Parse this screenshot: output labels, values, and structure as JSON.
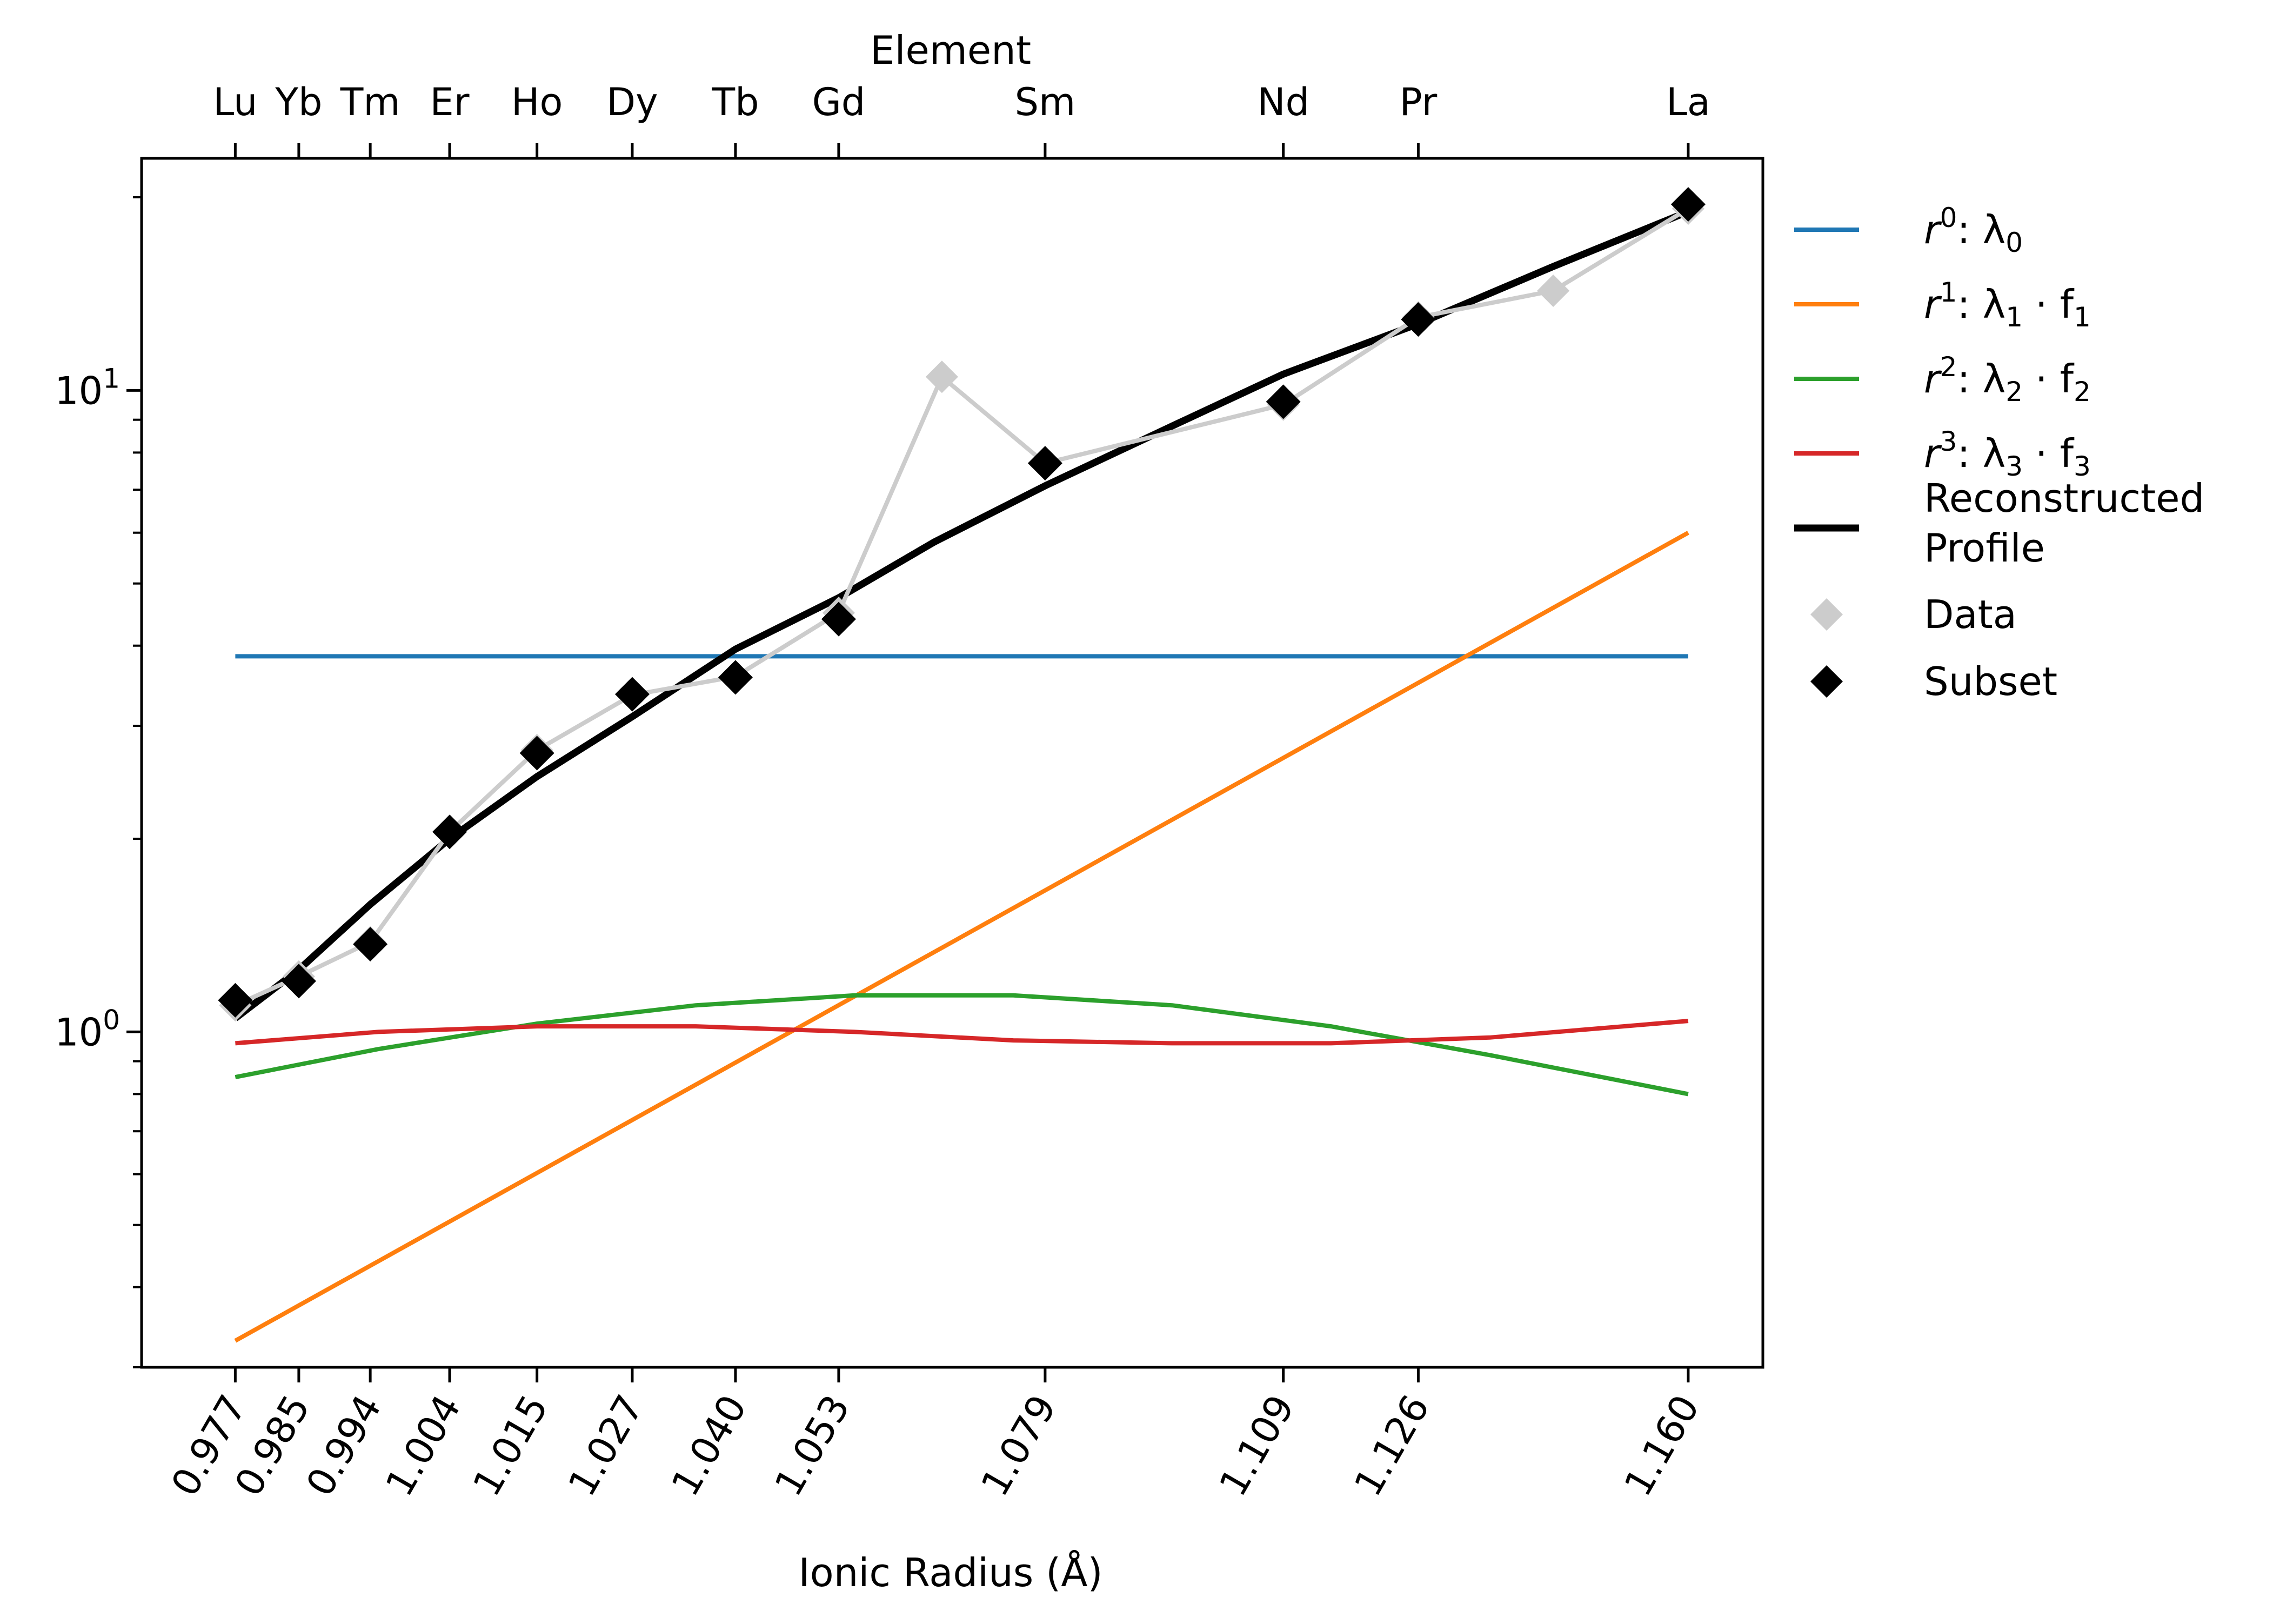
{
  "chart_data": {
    "type": "line",
    "xlabel": "Ionic Radius (Å)",
    "ylabel": "",
    "top_axis_label": "Element",
    "yscale": "log",
    "xlim": [
      0.9652,
      1.1694
    ],
    "ylim": [
      0.3,
      23
    ],
    "grid": false,
    "legend_position": "right, outside plot",
    "x_ticks": [
      0.977,
      0.985,
      0.994,
      1.004,
      1.015,
      1.027,
      1.04,
      1.053,
      1.079,
      1.109,
      1.126,
      1.16
    ],
    "x_tick_labels": [
      "0.977",
      "0.985",
      "0.994",
      "1.004",
      "1.015",
      "1.027",
      "1.040",
      "1.053",
      "1.079",
      "1.109",
      "1.126",
      "1.160"
    ],
    "top_ticks": [
      0.977,
      0.985,
      0.994,
      1.004,
      1.015,
      1.027,
      1.04,
      1.053,
      1.079,
      1.109,
      1.126,
      1.16
    ],
    "top_tick_labels": [
      "Lu",
      "Yb",
      "Tm",
      "Er",
      "Ho",
      "Dy",
      "Tb",
      "Gd",
      "Sm",
      "Nd",
      "Pr",
      "La"
    ],
    "y_tick_labels": [
      {
        "value": 1,
        "base": "10",
        "exp": "0"
      },
      {
        "value": 10,
        "base": "10",
        "exp": "1"
      }
    ],
    "series": [
      {
        "name_base": "r",
        "name_sup": "0",
        "name_rest": ": λ",
        "name_sub": "0",
        "kind": "line",
        "color": "#1f77b4",
        "x": [
          0.977,
          1.16
        ],
        "values": [
          3.85,
          3.85
        ]
      },
      {
        "name_base": "r",
        "name_sup": "1",
        "name_rest": ": λ",
        "name_sub": "1",
        "name_tail": " · f",
        "name_tail_sub": "1",
        "kind": "line",
        "color": "#ff7f0e",
        "x": [
          0.977,
          1.16
        ],
        "values": [
          0.33,
          6.0
        ]
      },
      {
        "name_base": "r",
        "name_sup": "2",
        "name_rest": ": λ",
        "name_sub": "2",
        "name_tail": " · f",
        "name_tail_sub": "2",
        "kind": "line",
        "color": "#2ca02c",
        "x": [
          0.977,
          0.995,
          1.015,
          1.035,
          1.055,
          1.075,
          1.095,
          1.115,
          1.135,
          1.16
        ],
        "values": [
          0.85,
          0.94,
          1.03,
          1.1,
          1.14,
          1.14,
          1.1,
          1.02,
          0.92,
          0.8
        ]
      },
      {
        "name_base": "r",
        "name_sup": "3",
        "name_rest": ": λ",
        "name_sub": "3",
        "name_tail": " · f",
        "name_tail_sub": "3",
        "kind": "line",
        "color": "#d62728",
        "x": [
          0.977,
          0.995,
          1.015,
          1.035,
          1.055,
          1.075,
          1.095,
          1.115,
          1.135,
          1.16
        ],
        "values": [
          0.96,
          1.0,
          1.02,
          1.02,
          1.0,
          0.97,
          0.96,
          0.96,
          0.98,
          1.04
        ]
      },
      {
        "name": "Reconstructed",
        "name_line2": "Profile",
        "kind": "line",
        "color": "#000000",
        "width": 13,
        "x": [
          0.977,
          0.985,
          0.994,
          1.004,
          1.015,
          1.027,
          1.04,
          1.053,
          1.065,
          1.079,
          1.095,
          1.109,
          1.126,
          1.143,
          1.16
        ],
        "values": [
          1.05,
          1.25,
          1.58,
          2.0,
          2.5,
          3.1,
          3.95,
          4.75,
          5.8,
          7.1,
          8.8,
          10.6,
          12.7,
          15.6,
          19.0
        ]
      },
      {
        "name": "Data",
        "kind": "marker-line",
        "color": "#cccccc",
        "x": [
          0.977,
          0.985,
          0.994,
          1.004,
          1.015,
          1.027,
          1.04,
          1.053,
          1.066,
          1.079,
          1.109,
          1.126,
          1.143,
          1.16
        ],
        "values": [
          1.1,
          1.22,
          1.38,
          2.05,
          2.75,
          3.35,
          3.58,
          4.5,
          10.5,
          7.7,
          9.5,
          13.0,
          14.3,
          19.2
        ]
      },
      {
        "name": "Subset",
        "kind": "markers",
        "color": "#000000",
        "x": [
          0.977,
          0.985,
          0.994,
          1.004,
          1.015,
          1.027,
          1.04,
          1.053,
          1.079,
          1.109,
          1.126,
          1.16
        ],
        "values": [
          1.12,
          1.2,
          1.37,
          2.05,
          2.72,
          3.36,
          3.57,
          4.4,
          7.7,
          9.6,
          12.9,
          19.5
        ]
      }
    ]
  }
}
